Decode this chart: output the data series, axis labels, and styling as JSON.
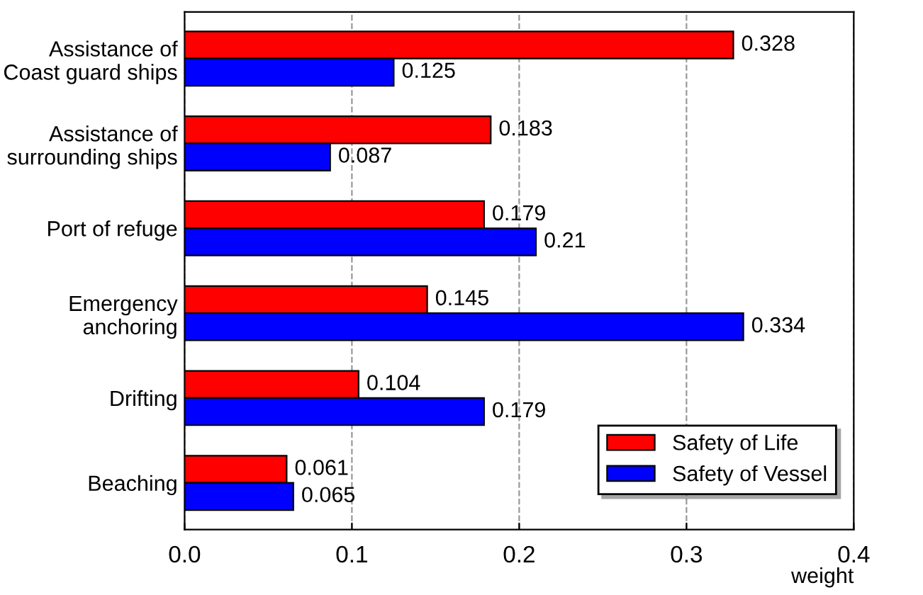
{
  "chart_data": {
    "type": "bar",
    "orientation": "horizontal",
    "categories": [
      "Assistance of\nCoast guard ships",
      "Assistance of\nsurrounding ships",
      "Port of refuge",
      "Emergency\nanchoring",
      "Drifting",
      "Beaching"
    ],
    "series": [
      {
        "name": "Safety of Life",
        "color": "#ff0000",
        "values": [
          0.328,
          0.183,
          0.179,
          0.145,
          0.104,
          0.061
        ]
      },
      {
        "name": "Safety of Vessel",
        "color": "#0000ff",
        "values": [
          0.125,
          0.087,
          0.21,
          0.334,
          0.179,
          0.065
        ]
      }
    ],
    "xlabel": "weight",
    "xlim": [
      0.0,
      0.4
    ],
    "xticks": [
      {
        "value": 0.0,
        "label": "0.0"
      },
      {
        "value": 0.1,
        "label": "0.1"
      },
      {
        "value": 0.2,
        "label": "0.2"
      },
      {
        "value": 0.3,
        "label": "0.3"
      },
      {
        "value": 0.4,
        "label": "0.4"
      }
    ],
    "grid": "x",
    "legend": "bottom right",
    "data_labels": true
  }
}
